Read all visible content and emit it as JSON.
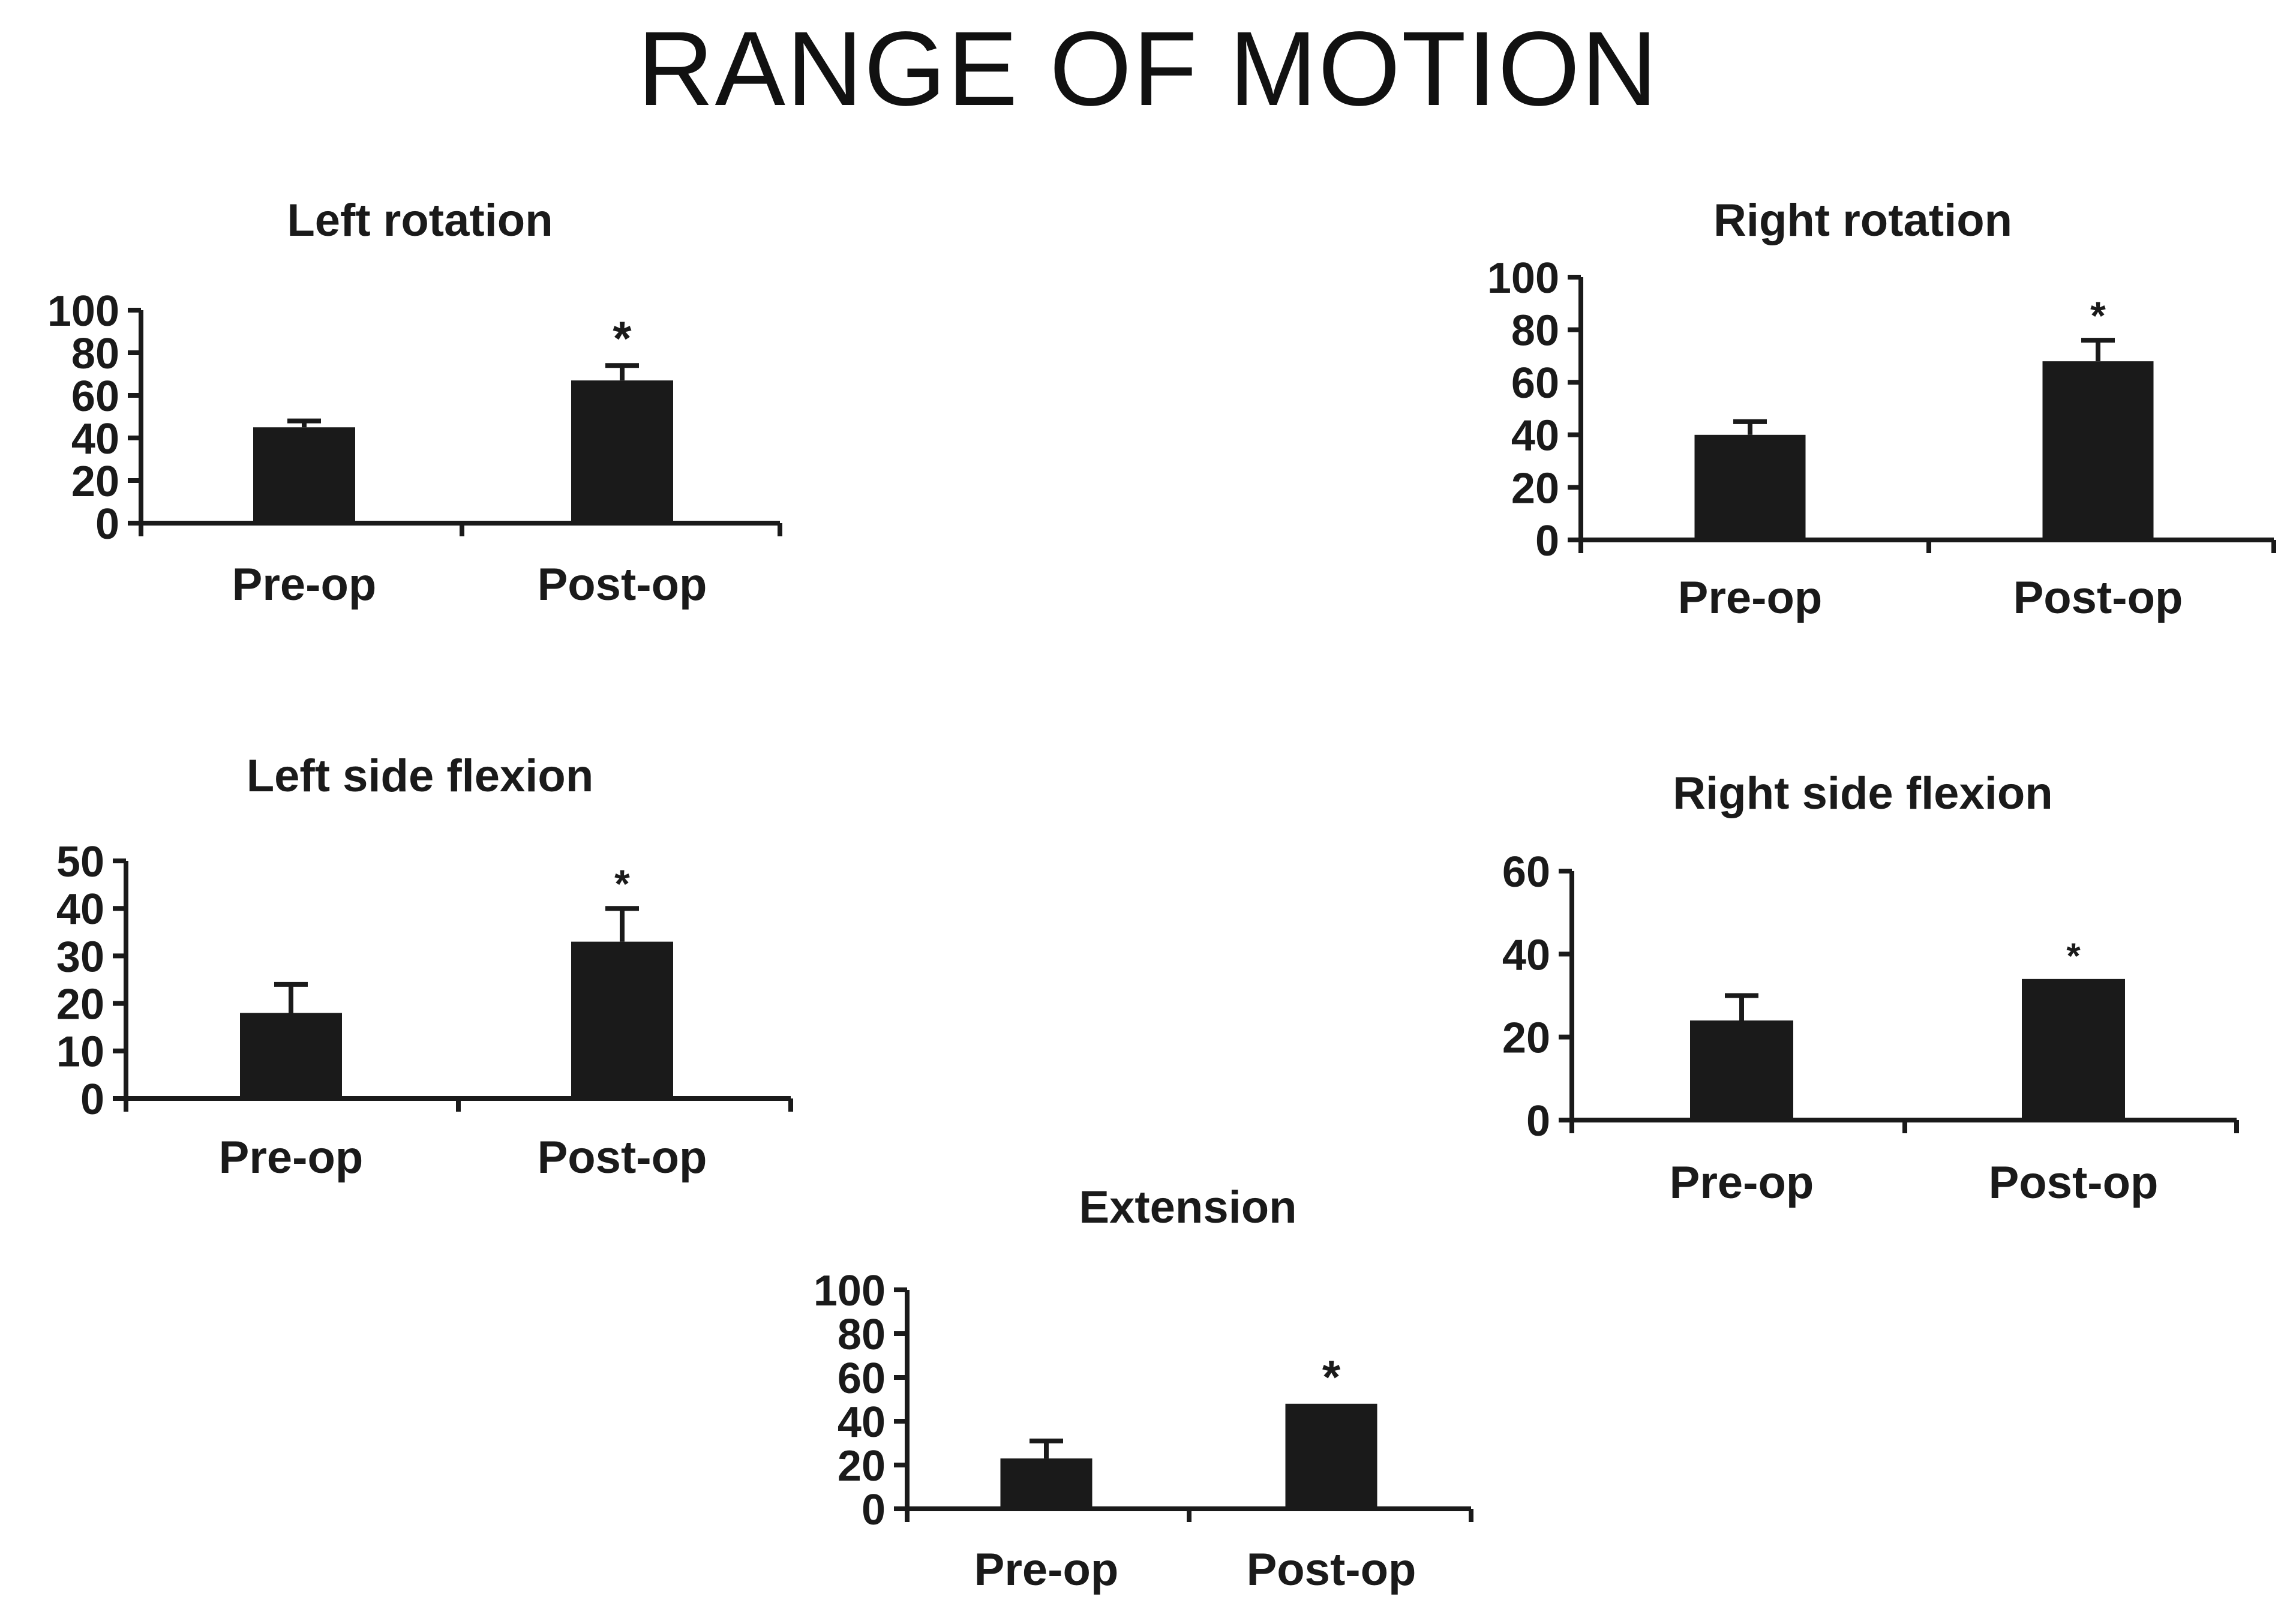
{
  "page": {
    "title": "RANGE OF MOTION"
  },
  "chart_data": [
    {
      "id": "left-rotation",
      "type": "bar",
      "title": "Left rotation",
      "categories": [
        "Pre-op",
        "Post-op"
      ],
      "values": [
        45,
        67
      ],
      "error": [
        3,
        7
      ],
      "significance": [
        "",
        "*"
      ],
      "yticks": [
        0,
        20,
        40,
        60,
        80,
        100
      ],
      "ylim": [
        0,
        100
      ],
      "xlabel": "",
      "ylabel": "",
      "colors": {
        "bar": "#1a1a1a",
        "axis": "#1a1a1a"
      }
    },
    {
      "id": "right-rotation",
      "type": "bar",
      "title": "Right rotation",
      "categories": [
        "Pre-op",
        "Post-op"
      ],
      "values": [
        40,
        68
      ],
      "error": [
        5,
        8
      ],
      "significance": [
        "",
        "*"
      ],
      "yticks": [
        0,
        20,
        40,
        60,
        80,
        100
      ],
      "ylim": [
        0,
        100
      ],
      "xlabel": "",
      "ylabel": "",
      "colors": {
        "bar": "#1a1a1a",
        "axis": "#1a1a1a"
      }
    },
    {
      "id": "left-side-flexion",
      "type": "bar",
      "title": "Left side flexion",
      "categories": [
        "Pre-op",
        "Post-op"
      ],
      "values": [
        18,
        33
      ],
      "error": [
        6,
        7
      ],
      "significance": [
        "",
        "*"
      ],
      "yticks": [
        0,
        10,
        20,
        30,
        40,
        50
      ],
      "ylim": [
        0,
        50
      ],
      "xlabel": "",
      "ylabel": "",
      "colors": {
        "bar": "#1a1a1a",
        "axis": "#1a1a1a"
      }
    },
    {
      "id": "right-side-flexion",
      "type": "bar",
      "title": "Right side flexion",
      "categories": [
        "Pre-op",
        "Post-op"
      ],
      "values": [
        24,
        34
      ],
      "error": [
        6,
        0
      ],
      "significance": [
        "",
        "*"
      ],
      "yticks": [
        0,
        20,
        40,
        60
      ],
      "ylim": [
        0,
        60
      ],
      "xlabel": "",
      "ylabel": "",
      "colors": {
        "bar": "#1a1a1a",
        "axis": "#1a1a1a"
      }
    },
    {
      "id": "extension",
      "type": "bar",
      "title": "Extension",
      "categories": [
        "Pre-op",
        "Post-op"
      ],
      "values": [
        23,
        48
      ],
      "error": [
        8,
        0
      ],
      "significance": [
        "",
        "*"
      ],
      "yticks": [
        0,
        20,
        40,
        60,
        80,
        100
      ],
      "ylim": [
        0,
        100
      ],
      "xlabel": "",
      "ylabel": "",
      "colors": {
        "bar": "#1a1a1a",
        "axis": "#1a1a1a"
      }
    }
  ]
}
